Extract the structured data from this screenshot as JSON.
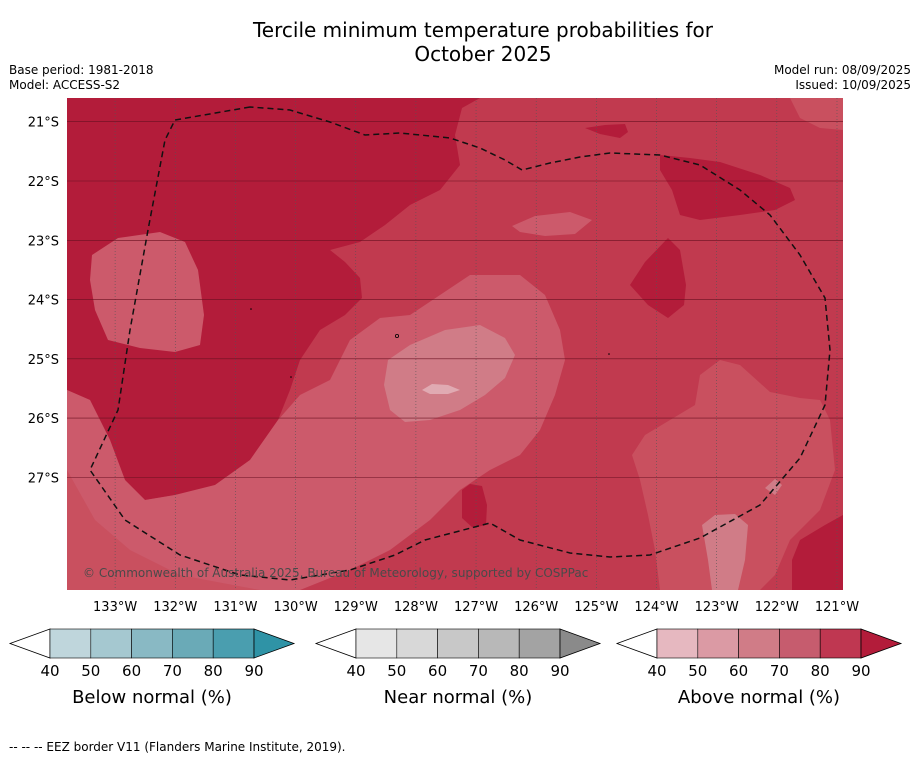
{
  "title_line1": "Tercile minimum temperature probabilities for",
  "title_line2": "October 2025",
  "base_period": "Base period: 1981-2018",
  "model": "Model: ACCESS-S2",
  "model_run": "Model run: 08/09/2025",
  "issued": "Issued: 10/09/2025",
  "copyright": "© Commonwealth of Australia 2025, Bureau of Meteorology, supported by COSPPac",
  "map": {
    "lon_range": [
      -133.8,
      -120.9
    ],
    "lat_range": [
      -28.9,
      -20.6
    ],
    "lat_labels": [
      "21°S",
      "22°S",
      "23°S",
      "24°S",
      "25°S",
      "26°S",
      "27°S"
    ],
    "lat_values": [
      -21,
      -22,
      -23,
      -24,
      -25,
      -26,
      -27
    ],
    "lon_labels": [
      "133°W",
      "132°W",
      "131°W",
      "130°W",
      "129°W",
      "128°W",
      "127°W",
      "126°W",
      "125°W",
      "124°W",
      "123°W",
      "122°W",
      "121°W"
    ],
    "lon_values": [
      -133,
      -132,
      -131,
      -130,
      -129,
      -128,
      -127,
      -126,
      -125,
      -124,
      -123,
      -122,
      -121
    ],
    "colors": {
      "above_80": "#b31c3a",
      "above_70": "#c13a4f",
      "above_60": "#cc5a6b",
      "above_50": "#d07c87",
      "above_40_50": "#e0aab2"
    }
  },
  "colorbars": [
    {
      "title": "Below normal (%)",
      "ticks": [
        "40",
        "50",
        "60",
        "70",
        "80",
        "90"
      ],
      "colors": [
        "#bfd6dc",
        "#a5c8d0",
        "#89b9c4",
        "#6aaab7",
        "#4a9eaf",
        "#2f93a6"
      ]
    },
    {
      "title": "Near normal (%)",
      "ticks": [
        "40",
        "50",
        "60",
        "70",
        "80",
        "90"
      ],
      "colors": [
        "#e6e6e6",
        "#d8d8d8",
        "#c8c8c8",
        "#b8b8b8",
        "#a3a3a3",
        "#8a8a8a"
      ]
    },
    {
      "title": "Above normal (%)",
      "ticks": [
        "40",
        "50",
        "60",
        "70",
        "80",
        "90"
      ],
      "colors": [
        "#e6b8c0",
        "#db9aa4",
        "#d07c87",
        "#c65c6e",
        "#bf3751",
        "#b31c3a"
      ]
    }
  ],
  "footnote": "--  --  -- EEZ border V11 (Flanders Marine Institute, 2019)."
}
